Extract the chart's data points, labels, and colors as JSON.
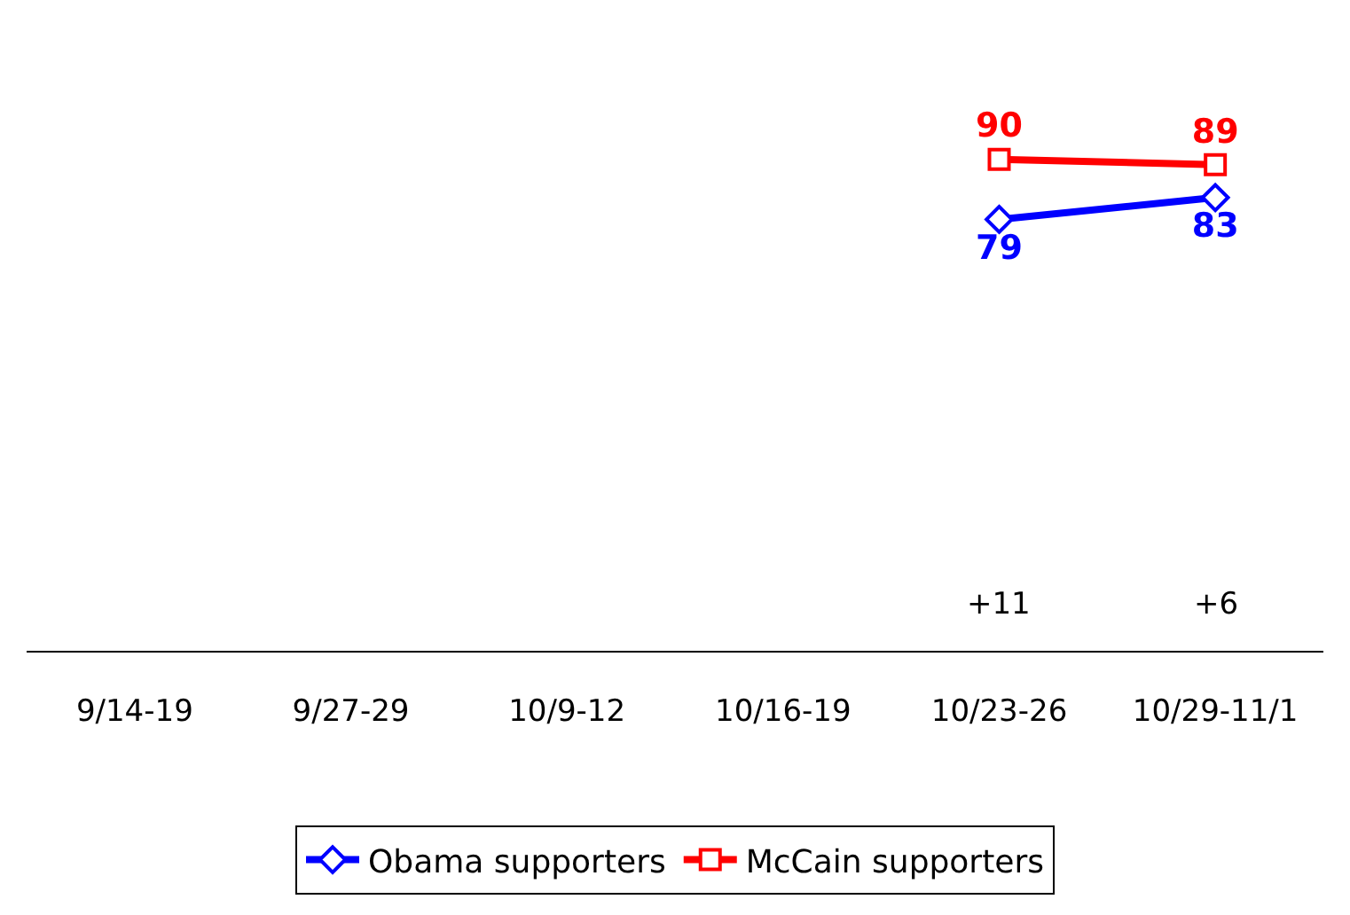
{
  "chart_data": {
    "type": "line",
    "categories": [
      "9/14-19",
      "9/27-29",
      "10/9-12",
      "10/16-19",
      "10/23-26",
      "10/29-11/1"
    ],
    "series": [
      {
        "name": "Obama supporters",
        "color": "#0000ff",
        "marker": "diamond",
        "values": [
          null,
          null,
          null,
          null,
          79,
          83
        ]
      },
      {
        "name": "McCain supporters",
        "color": "#ff0000",
        "marker": "square",
        "values": [
          null,
          null,
          null,
          null,
          90,
          89
        ]
      }
    ],
    "data_labels": true,
    "annotations": [
      "+11",
      "+6"
    ],
    "legend": "bottom"
  }
}
